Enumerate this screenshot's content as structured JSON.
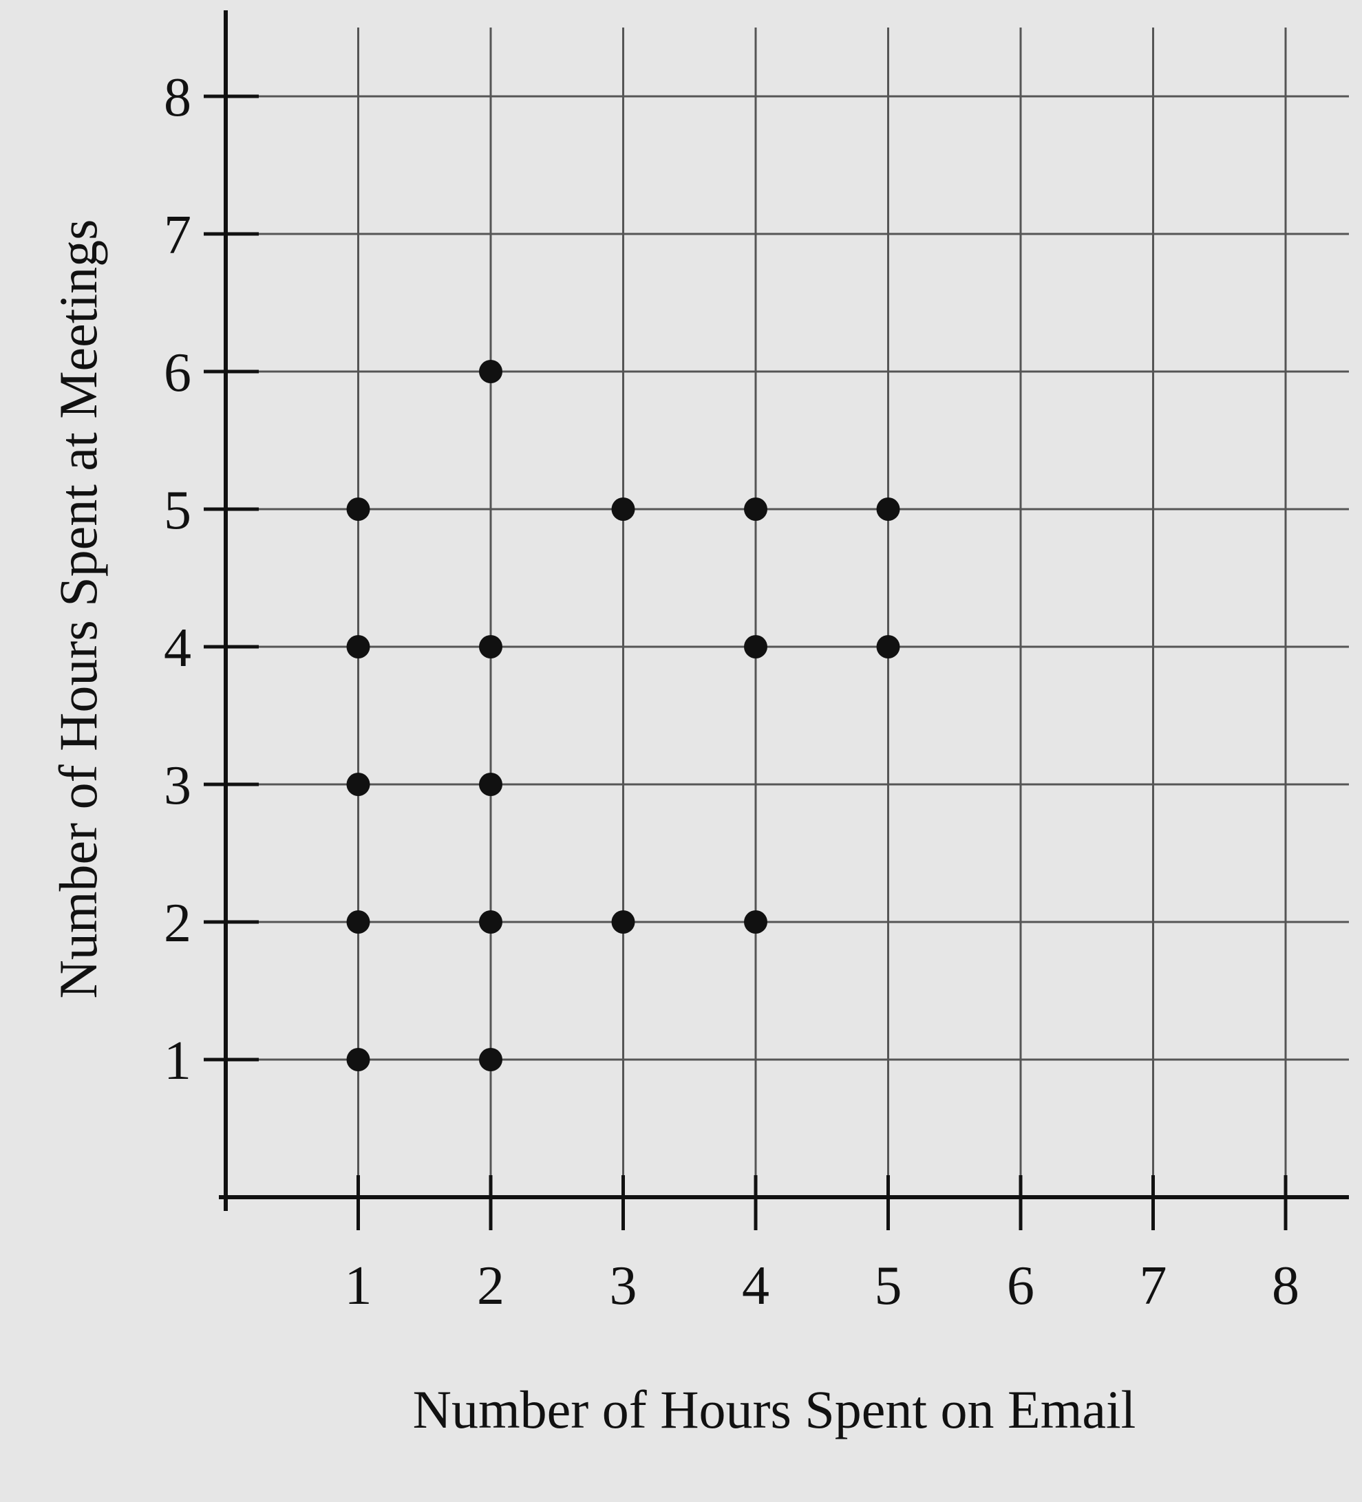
{
  "chart_data": {
    "type": "scatter",
    "title": "",
    "xlabel": "Number of Hours Spent on Email",
    "ylabel": "Number of Hours Spent at Meetings",
    "xlim": [
      0,
      8
    ],
    "ylim": [
      0,
      8
    ],
    "x_ticks": [
      "1",
      "2",
      "3",
      "4",
      "5",
      "6",
      "7",
      "8"
    ],
    "y_ticks": [
      "1",
      "2",
      "3",
      "4",
      "5",
      "6",
      "7",
      "8"
    ],
    "grid": true,
    "legend": "none",
    "marker_color": "#111111",
    "grid_color": "#555555",
    "points": [
      {
        "x": 1,
        "y": 1
      },
      {
        "x": 1,
        "y": 2
      },
      {
        "x": 1,
        "y": 3
      },
      {
        "x": 1,
        "y": 4
      },
      {
        "x": 1,
        "y": 5
      },
      {
        "x": 2,
        "y": 1
      },
      {
        "x": 2,
        "y": 2
      },
      {
        "x": 2,
        "y": 3
      },
      {
        "x": 2,
        "y": 4
      },
      {
        "x": 2,
        "y": 6
      },
      {
        "x": 3,
        "y": 2
      },
      {
        "x": 3,
        "y": 5
      },
      {
        "x": 4,
        "y": 2
      },
      {
        "x": 4,
        "y": 4
      },
      {
        "x": 4,
        "y": 5
      },
      {
        "x": 5,
        "y": 4
      },
      {
        "x": 5,
        "y": 5
      }
    ]
  }
}
